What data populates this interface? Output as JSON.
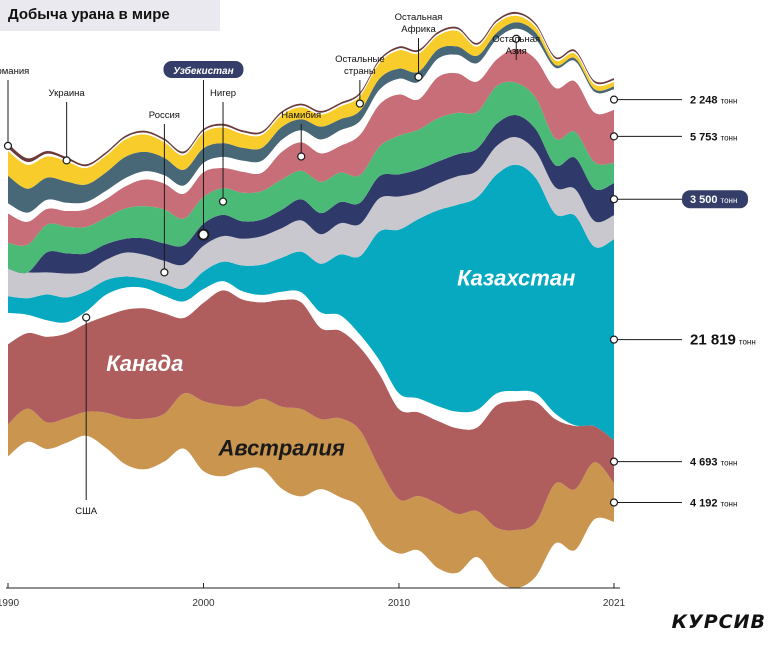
{
  "title": "Добыча урана в мире",
  "brand": "КУРСИВ",
  "colors": {
    "background": "#ffffff",
    "australia": "#c9954f",
    "canada": "#b05d5e",
    "usa": "#ffffff",
    "kazakhstan": "#06a9c0",
    "russia": "#c9c8ce",
    "uzbekistan": "#303a6a",
    "niger": "#4cba77",
    "namibia": "#c86e78",
    "rest_africa": "#486777",
    "rest_asia": "#ffffff",
    "other": "#f7cc2b",
    "germany": "#6b3a3a",
    "ukraine": "#ffffff",
    "ann_badge": "#353e68"
  },
  "chart_data": {
    "type": "area",
    "title": "Добыча урана в мире",
    "x_ticks": [
      "1990",
      "2000",
      "2010",
      "2021"
    ],
    "x": [
      1990,
      1991,
      1992,
      1993,
      1994,
      1995,
      1996,
      1997,
      1998,
      1999,
      2000,
      2001,
      2002,
      2003,
      2004,
      2005,
      2006,
      2007,
      2008,
      2009,
      2010,
      2011,
      2012,
      2013,
      2014,
      2015,
      2016,
      2017,
      2018,
      2019,
      2020,
      2021
    ],
    "series_order_bottom_to_top": [
      "Австралия",
      "Канада",
      "США",
      "Казахстан",
      "Россия",
      "Узбекистан",
      "Нигер",
      "Намибия",
      "Остальная Азия",
      "Остальная Африка",
      "Остальные страны",
      "Украина",
      "Германия"
    ],
    "series": [
      {
        "name": "Австралия",
        "color_key": "australia",
        "values": [
          3500,
          3600,
          2900,
          2700,
          2600,
          3800,
          5000,
          5500,
          5200,
          6000,
          7600,
          7700,
          6900,
          7600,
          8900,
          9500,
          7600,
          8600,
          8400,
          7900,
          5900,
          5900,
          7000,
          6400,
          5000,
          5700,
          6300,
          5900,
          6500,
          6600,
          6200,
          4192
        ]
      },
      {
        "name": "Канада",
        "color_key": "canada",
        "values": [
          8700,
          8200,
          9300,
          9200,
          9600,
          10500,
          11800,
          12000,
          10900,
          8200,
          10700,
          12500,
          11600,
          10500,
          11600,
          11600,
          9900,
          9500,
          9000,
          10200,
          9800,
          9100,
          9000,
          9300,
          9100,
          13300,
          14000,
          13100,
          7000,
          6900,
          3900,
          4693
        ]
      },
      {
        "name": "США",
        "color_key": "usa",
        "values": [
          3400,
          2000,
          1800,
          1200,
          1300,
          2300,
          2400,
          2200,
          1900,
          1800,
          1500,
          1000,
          900,
          800,
          900,
          1100,
          1700,
          1700,
          1400,
          1500,
          1700,
          1500,
          1600,
          1800,
          1900,
          1300,
          1100,
          900,
          600,
          60,
          8,
          8
        ]
      },
      {
        "name": "Казахстан",
        "color_key": "kazakhstan",
        "values": [
          1800,
          1800,
          2800,
          2700,
          2200,
          1600,
          1200,
          1000,
          1300,
          1400,
          1900,
          2100,
          2800,
          3300,
          3700,
          4400,
          5300,
          6600,
          8500,
          14000,
          17800,
          19500,
          21300,
          22500,
          23100,
          23800,
          24600,
          23400,
          21700,
          22800,
          19500,
          21819
        ]
      },
      {
        "name": "Россия",
        "color_key": "russia",
        "values": [
          3000,
          2800,
          2400,
          2600,
          2100,
          2200,
          2600,
          2600,
          2500,
          2600,
          2800,
          2800,
          2900,
          3100,
          3200,
          3400,
          3200,
          3400,
          3500,
          3600,
          3600,
          2900,
          2900,
          3100,
          2900,
          3100,
          3000,
          2900,
          2900,
          2900,
          2800,
          2600
        ]
      },
      {
        "name": "Узбекистан",
        "color_key": "uzbekistan",
        "values": [
          0,
          0,
          2200,
          2200,
          2000,
          1700,
          1500,
          1800,
          1900,
          2100,
          2400,
          2300,
          1900,
          1800,
          2000,
          2300,
          2300,
          2300,
          2300,
          2400,
          2400,
          2500,
          2400,
          2400,
          2400,
          2400,
          2400,
          2400,
          2400,
          3400,
          3500,
          3500
        ]
      },
      {
        "name": "Нигер",
        "color_key": "niger",
        "values": [
          2800,
          3000,
          3000,
          2900,
          2900,
          2900,
          3300,
          3500,
          3700,
          2900,
          2900,
          2900,
          3100,
          3100,
          3300,
          3100,
          3400,
          3200,
          3000,
          3200,
          4200,
          4300,
          4700,
          4500,
          4000,
          4100,
          3500,
          3400,
          2900,
          2800,
          2900,
          2200
        ]
      },
      {
        "name": "Намибия",
        "color_key": "namibia",
        "values": [
          3200,
          2500,
          1700,
          1700,
          1900,
          2000,
          2400,
          2900,
          2800,
          2700,
          2700,
          2200,
          2300,
          2000,
          3000,
          3100,
          3100,
          2900,
          4400,
          4600,
          4500,
          3300,
          4500,
          4300,
          3300,
          2900,
          3700,
          4200,
          5500,
          5500,
          5400,
          5753
        ]
      },
      {
        "name": "Остальная Азия",
        "color_key": "rest_asia",
        "values": [
          1100,
          1000,
          1000,
          900,
          800,
          900,
          900,
          900,
          900,
          900,
          1000,
          1200,
          1200,
          1300,
          1300,
          1300,
          1500,
          1700,
          1500,
          1600,
          1700,
          1900,
          2000,
          2000,
          2000,
          2200,
          2200,
          2200,
          2200,
          2200,
          2248,
          2248
        ]
      },
      {
        "name": "Остальная Африка",
        "color_key": "rest_africa",
        "values": [
          3000,
          2600,
          2400,
          2300,
          1900,
          2000,
          2300,
          2100,
          1900,
          1700,
          1600,
          1500,
          1400,
          1400,
          1400,
          1200,
          1400,
          1200,
          1100,
          1200,
          1100,
          1100,
          1000,
          900,
          800,
          700,
          700,
          700,
          300,
          300,
          300,
          300
        ]
      },
      {
        "name": "Остальные страны",
        "color_key": "other",
        "values": [
          2700,
          2600,
          2300,
          2200,
          1800,
          1800,
          1900,
          1900,
          1700,
          1600,
          1700,
          1700,
          1500,
          1400,
          1300,
          1300,
          1300,
          1400,
          1600,
          1700,
          2000,
          2000,
          1500,
          1700,
          1000,
          1000,
          700,
          600,
          500,
          500,
          500,
          500
        ]
      },
      {
        "name": "Украина",
        "color_key": "ukraine",
        "values": [
          300,
          300,
          300,
          200,
          200,
          200,
          200,
          200,
          200,
          200,
          200,
          200,
          200,
          200,
          200,
          200,
          200,
          200,
          200,
          200,
          200,
          200,
          200,
          200,
          200,
          200,
          200,
          200,
          200,
          200,
          200,
          200
        ]
      },
      {
        "name": "Германия",
        "color_key": "germany",
        "values": [
          500,
          400,
          300,
          250,
          200,
          200,
          200,
          200,
          200,
          200,
          200,
          200,
          200,
          200,
          200,
          200,
          200,
          200,
          200,
          200,
          200,
          200,
          200,
          200,
          200,
          200,
          200,
          200,
          200,
          200,
          200,
          200
        ]
      }
    ],
    "area_labels": [
      {
        "series": "Казахстан",
        "text": "Казахстан",
        "color": "#ffffff"
      },
      {
        "series": "Канада",
        "text": "Канада",
        "color": "#ffffff"
      },
      {
        "series": "Австралия",
        "text": "Австралия",
        "color": "#1a1a1a"
      }
    ],
    "top_annotations": [
      {
        "series": "Германия",
        "year": 1990,
        "text": "Германия",
        "highlight": false
      },
      {
        "series": "Украина",
        "year": 1993,
        "text": "Украина",
        "highlight": false
      },
      {
        "series": "Россия",
        "year": 1998,
        "text": "Россия",
        "highlight": false
      },
      {
        "series": "Узбекистан",
        "year": 2000,
        "text": "Узбекистан",
        "highlight": true
      },
      {
        "series": "Нигер",
        "year": 2001,
        "text": "Нигер",
        "highlight": false
      },
      {
        "series": "Намибия",
        "year": 2005,
        "text": "Намибия",
        "highlight": false
      },
      {
        "series": "Остальные страны",
        "year": 2008,
        "text": "Остальные страны",
        "highlight": false
      },
      {
        "series": "Остальная Африка",
        "year": 2011,
        "text": "Остальная Африка",
        "highlight": false
      },
      {
        "series": "Остальная Азия",
        "year": 2016,
        "text": "Остальная Азия",
        "highlight": false
      }
    ],
    "bottom_annotations": [
      {
        "series": "США",
        "year": 1994,
        "text": "США"
      }
    ],
    "right_labels": [
      {
        "series": "Остальная Азия",
        "value": "2 248",
        "unit": "тонн",
        "highlight": false
      },
      {
        "series": "Намибия",
        "value": "5 753",
        "unit": "тонн",
        "highlight": false
      },
      {
        "series": "Узбекистан",
        "value": "3 500",
        "unit": "тонн",
        "highlight": true
      },
      {
        "series": "Казахстан",
        "value": "21 819",
        "unit": "тонн",
        "highlight": false
      },
      {
        "series": "Канада",
        "value": "4 693",
        "unit": "тонн",
        "highlight": false
      },
      {
        "series": "Австралия",
        "value": "4 192",
        "unit": "тонн",
        "highlight": false
      }
    ]
  }
}
